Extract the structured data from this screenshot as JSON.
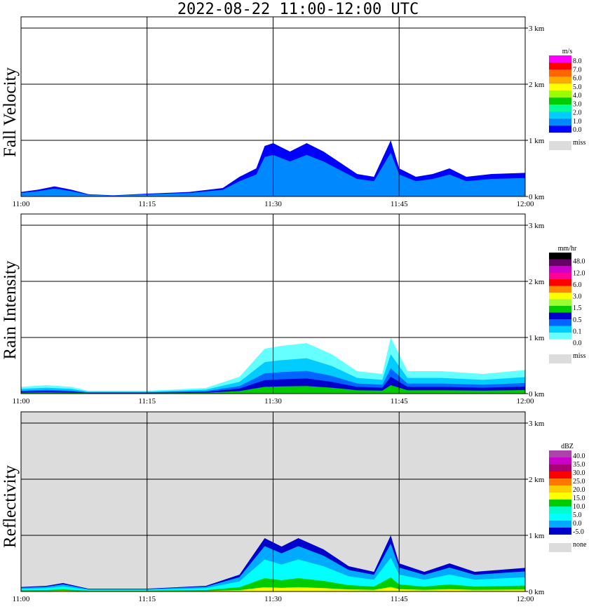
{
  "title": "2022-08-22   11:00-12:00 UTC",
  "colors": {
    "missing_gray": "#dcdcdc",
    "grid": "#000000"
  },
  "chart_data": [
    {
      "type": "heatmap",
      "panel": "fall_velocity",
      "ylabel": "Fall Velocity",
      "x_ticks": [
        "11:00",
        "11:15",
        "11:30",
        "11:45",
        "12:00"
      ],
      "y_ticks": [
        "0 km",
        "1 km",
        "2 km",
        "3 km"
      ],
      "xlim": [
        "11:00",
        "12:00"
      ],
      "ylim_km": [
        0,
        3.0
      ],
      "background": "white",
      "colorbar": {
        "unit": "m/s",
        "labels": [
          "8.0",
          "7.0",
          "6.0",
          "5.0",
          "4.0",
          "3.0",
          "2.0",
          "1.0",
          "0.0"
        ],
        "colors": [
          "#ff00ff",
          "#ff0000",
          "#ff6600",
          "#ffaa00",
          "#ffff00",
          "#99ff00",
          "#00cc00",
          "#00ff99",
          "#00ccff",
          "#0088ff",
          "#0000ff"
        ],
        "missing_label": "miss"
      },
      "echo_top_km": [
        {
          "t": "11:00",
          "top": 0.08
        },
        {
          "t": "11:02",
          "top": 0.12
        },
        {
          "t": "11:04",
          "top": 0.18
        },
        {
          "t": "11:06",
          "top": 0.12
        },
        {
          "t": "11:08",
          "top": 0.04
        },
        {
          "t": "11:11",
          "top": 0.02
        },
        {
          "t": "11:15",
          "top": 0.05
        },
        {
          "t": "11:20",
          "top": 0.08
        },
        {
          "t": "11:24",
          "top": 0.15
        },
        {
          "t": "11:26",
          "top": 0.35
        },
        {
          "t": "11:28",
          "top": 0.5
        },
        {
          "t": "11:29",
          "top": 0.9
        },
        {
          "t": "11:30",
          "top": 0.95
        },
        {
          "t": "11:32",
          "top": 0.8
        },
        {
          "t": "11:34",
          "top": 0.95
        },
        {
          "t": "11:36",
          "top": 0.8
        },
        {
          "t": "11:38",
          "top": 0.6
        },
        {
          "t": "11:40",
          "top": 0.4
        },
        {
          "t": "11:42",
          "top": 0.35
        },
        {
          "t": "11:44",
          "top": 1.0
        },
        {
          "t": "11:45",
          "top": 0.5
        },
        {
          "t": "11:47",
          "top": 0.35
        },
        {
          "t": "11:49",
          "top": 0.4
        },
        {
          "t": "11:51",
          "top": 0.5
        },
        {
          "t": "11:53",
          "top": 0.35
        },
        {
          "t": "11:56",
          "top": 0.4
        },
        {
          "t": "12:00",
          "top": 0.42
        }
      ]
    },
    {
      "type": "heatmap",
      "panel": "rain_intensity",
      "ylabel": "Rain Intensity",
      "x_ticks": [
        "11:00",
        "11:15",
        "11:30",
        "11:45",
        "12:00"
      ],
      "y_ticks": [
        "0 km",
        "1 km",
        "2 km",
        "3 km"
      ],
      "xlim": [
        "11:00",
        "12:00"
      ],
      "ylim_km": [
        0,
        3.0
      ],
      "background": "white",
      "colorbar": {
        "unit": "mm/hr",
        "labels": [
          "48.0",
          "12.0",
          "6.0",
          "3.0",
          "1.5",
          "0.5",
          "0.1",
          "0.0"
        ],
        "colors": [
          "#000000",
          "#660066",
          "#cc00cc",
          "#ff0099",
          "#ff0000",
          "#ff8800",
          "#ffff00",
          "#99ff33",
          "#00cc00",
          "#0000cc",
          "#0066ff",
          "#00ccff",
          "#66ffff",
          "#ffffff"
        ],
        "missing_label": "miss"
      },
      "echo_top_km": [
        {
          "t": "11:00",
          "top": 0.12
        },
        {
          "t": "11:03",
          "top": 0.15
        },
        {
          "t": "11:06",
          "top": 0.12
        },
        {
          "t": "11:08",
          "top": 0.05
        },
        {
          "t": "11:15",
          "top": 0.05
        },
        {
          "t": "11:22",
          "top": 0.1
        },
        {
          "t": "11:26",
          "top": 0.3
        },
        {
          "t": "11:29",
          "top": 0.8
        },
        {
          "t": "11:31",
          "top": 0.85
        },
        {
          "t": "11:34",
          "top": 0.9
        },
        {
          "t": "11:37",
          "top": 0.7
        },
        {
          "t": "11:40",
          "top": 0.4
        },
        {
          "t": "11:43",
          "top": 0.35
        },
        {
          "t": "11:44",
          "top": 1.0
        },
        {
          "t": "11:46",
          "top": 0.4
        },
        {
          "t": "11:50",
          "top": 0.4
        },
        {
          "t": "11:55",
          "top": 0.35
        },
        {
          "t": "12:00",
          "top": 0.42
        }
      ]
    },
    {
      "type": "heatmap",
      "panel": "reflectivity",
      "ylabel": "Reflectivity",
      "x_ticks": [
        "11:00",
        "11:15",
        "11:30",
        "11:45",
        "12:00"
      ],
      "y_ticks": [
        "0 km",
        "1 km",
        "2 km",
        "3 km"
      ],
      "xlim": [
        "11:00",
        "12:00"
      ],
      "ylim_km": [
        0,
        3.0
      ],
      "background": "gray",
      "colorbar": {
        "unit": "dBZ",
        "labels": [
          "40.0",
          "35.0",
          "30.0",
          "25.0",
          "20.0",
          "15.0",
          "10.0",
          "5.0",
          "0.0",
          "-5.0"
        ],
        "colors": [
          "#aa44aa",
          "#cc00cc",
          "#aa0077",
          "#ff0000",
          "#ff7700",
          "#ffcc00",
          "#ffff00",
          "#00cc00",
          "#00ffcc",
          "#00ffff",
          "#00aaff",
          "#0000cc"
        ],
        "missing_label": "none"
      },
      "echo_top_km": [
        {
          "t": "11:00",
          "top": 0.08
        },
        {
          "t": "11:03",
          "top": 0.1
        },
        {
          "t": "11:05",
          "top": 0.15
        },
        {
          "t": "11:08",
          "top": 0.05
        },
        {
          "t": "11:15",
          "top": 0.05
        },
        {
          "t": "11:22",
          "top": 0.1
        },
        {
          "t": "11:26",
          "top": 0.3
        },
        {
          "t": "11:29",
          "top": 0.95
        },
        {
          "t": "11:31",
          "top": 0.8
        },
        {
          "t": "11:33",
          "top": 0.95
        },
        {
          "t": "11:36",
          "top": 0.75
        },
        {
          "t": "11:39",
          "top": 0.45
        },
        {
          "t": "11:42",
          "top": 0.35
        },
        {
          "t": "11:44",
          "top": 1.0
        },
        {
          "t": "11:45",
          "top": 0.5
        },
        {
          "t": "11:48",
          "top": 0.35
        },
        {
          "t": "11:51",
          "top": 0.5
        },
        {
          "t": "11:54",
          "top": 0.35
        },
        {
          "t": "12:00",
          "top": 0.42
        }
      ]
    }
  ]
}
